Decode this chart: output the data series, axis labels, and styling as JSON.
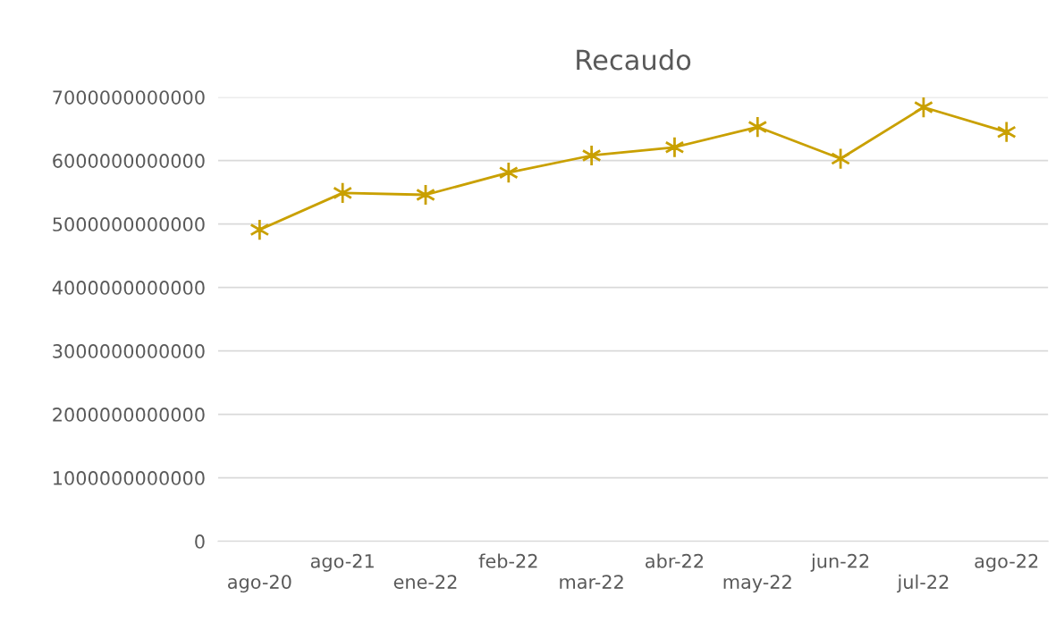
{
  "chart_data": {
    "type": "line",
    "title": "Recaudo",
    "categories": [
      "ago-20",
      "ago-21",
      "ene-22",
      "feb-22",
      "mar-22",
      "abr-22",
      "may-22",
      "jun-22",
      "jul-22",
      "ago-22"
    ],
    "series": [
      {
        "color": "#c9a000",
        "values": [
          4910000000000,
          5490000000000,
          5460000000000,
          5810000000000,
          6080000000000,
          6210000000000,
          6530000000000,
          6030000000000,
          6840000000000,
          6450000000000
        ]
      }
    ],
    "ylim": [
      0,
      7000000000000
    ],
    "yticks": [
      0,
      1000000000000,
      2000000000000,
      3000000000000,
      4000000000000,
      5000000000000,
      6000000000000,
      7000000000000
    ],
    "grid": "y",
    "legend": false,
    "marker": "cross",
    "line_style": "solid"
  }
}
